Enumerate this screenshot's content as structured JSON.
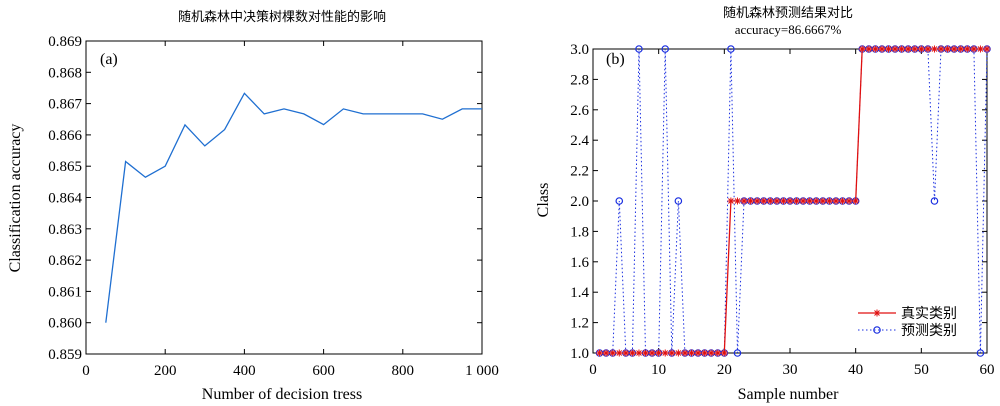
{
  "chart_data": [
    {
      "type": "line",
      "panel_label": "(a)",
      "title": "随机森林中决策树棵数对性能的影响",
      "xlabel": "Number of decision tress",
      "ylabel": "Classification accuracy",
      "xlim": [
        0,
        1000
      ],
      "ylim": [
        0.859,
        0.869
      ],
      "xticks": [
        0,
        200,
        400,
        600,
        800,
        1000
      ],
      "xtick_labels": [
        "0",
        "200",
        "400",
        "600",
        "800",
        "1 000"
      ],
      "yticks": [
        0.859,
        0.86,
        0.861,
        0.862,
        0.863,
        0.864,
        0.865,
        0.866,
        0.867,
        0.868,
        0.869
      ],
      "ytick_labels": [
        "0.859",
        "0.860",
        "0.861",
        "0.862",
        "0.863",
        "0.864",
        "0.865",
        "0.866",
        "0.867",
        "0.868",
        "0.869"
      ],
      "grid": false,
      "line_color": "#1f6fd1",
      "x": [
        50,
        100,
        150,
        200,
        250,
        300,
        350,
        400,
        450,
        500,
        550,
        600,
        650,
        700,
        750,
        800,
        850,
        900,
        950,
        1000
      ],
      "y": [
        0.86,
        0.86515,
        0.86465,
        0.865,
        0.86632,
        0.86565,
        0.86617,
        0.86733,
        0.86667,
        0.86683,
        0.86667,
        0.86633,
        0.86683,
        0.86667,
        0.86667,
        0.86667,
        0.86667,
        0.8665,
        0.86683,
        0.86683
      ]
    },
    {
      "type": "line",
      "panel_label": "(b)",
      "title": "随机森林预测结果对比",
      "subtitle": "accuracy=86.6667%",
      "xlabel": "Sample number",
      "ylabel": "Class",
      "xlim": [
        0,
        60
      ],
      "ylim": [
        1.0,
        3.0
      ],
      "xticks": [
        0,
        10,
        20,
        30,
        40,
        50,
        60
      ],
      "xtick_labels": [
        "0",
        "10",
        "20",
        "30",
        "40",
        "50",
        "60"
      ],
      "yticks": [
        1.0,
        1.2,
        1.4,
        1.6,
        1.8,
        2.0,
        2.2,
        2.4,
        2.6,
        2.8,
        3.0
      ],
      "ytick_labels": [
        "1.0",
        "1.2",
        "1.4",
        "1.6",
        "1.8",
        "2.0",
        "2.2",
        "2.4",
        "2.6",
        "2.8",
        "3.0"
      ],
      "grid": false,
      "legend_position": "bottom-right",
      "x": [
        1,
        2,
        3,
        4,
        5,
        6,
        7,
        8,
        9,
        10,
        11,
        12,
        13,
        14,
        15,
        16,
        17,
        18,
        19,
        20,
        21,
        22,
        23,
        24,
        25,
        26,
        27,
        28,
        29,
        30,
        31,
        32,
        33,
        34,
        35,
        36,
        37,
        38,
        39,
        40,
        41,
        42,
        43,
        44,
        45,
        46,
        47,
        48,
        49,
        50,
        51,
        52,
        53,
        54,
        55,
        56,
        57,
        58,
        59,
        60
      ],
      "series": [
        {
          "name": "真实类别",
          "color": "#e01010",
          "style": "solid",
          "marker": "star",
          "values": [
            1,
            1,
            1,
            1,
            1,
            1,
            1,
            1,
            1,
            1,
            1,
            1,
            1,
            1,
            1,
            1,
            1,
            1,
            1,
            1,
            2,
            2,
            2,
            2,
            2,
            2,
            2,
            2,
            2,
            2,
            2,
            2,
            2,
            2,
            2,
            2,
            2,
            2,
            2,
            2,
            3,
            3,
            3,
            3,
            3,
            3,
            3,
            3,
            3,
            3,
            3,
            3,
            3,
            3,
            3,
            3,
            3,
            3,
            3,
            3
          ]
        },
        {
          "name": "预测类别",
          "color": "#1a2fe0",
          "style": "dotted",
          "marker": "circle",
          "values": [
            1,
            1,
            1,
            2,
            1,
            1,
            3,
            1,
            1,
            1,
            3,
            1,
            2,
            1,
            1,
            1,
            1,
            1,
            1,
            1,
            3,
            1,
            2,
            2,
            2,
            2,
            2,
            2,
            2,
            2,
            2,
            2,
            2,
            2,
            2,
            2,
            2,
            2,
            2,
            2,
            3,
            3,
            3,
            3,
            3,
            3,
            3,
            3,
            3,
            3,
            3,
            2,
            3,
            3,
            3,
            3,
            3,
            3,
            1,
            3
          ]
        }
      ]
    }
  ]
}
